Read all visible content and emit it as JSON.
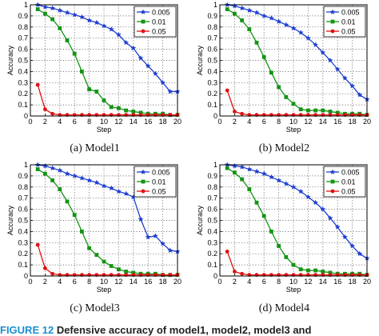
{
  "chart_data": [
    {
      "type": "line",
      "caption": "(a)  Model1",
      "xlabel": "Step",
      "ylabel": "Accuracy",
      "xlim": [
        0,
        20
      ],
      "ylim": [
        0,
        1
      ],
      "xticks": [
        0,
        2,
        4,
        6,
        8,
        10,
        12,
        14,
        16,
        18,
        20
      ],
      "yticks": [
        0,
        0.1,
        0.2,
        0.3,
        0.4,
        0.5,
        0.6,
        0.7,
        0.8,
        0.9,
        1
      ],
      "grid": true,
      "legend_position": "top-right",
      "series": [
        {
          "name": "0.005",
          "color": "#1f3fd0",
          "marker": "star",
          "x": [
            1,
            2,
            3,
            4,
            5,
            6,
            7,
            8,
            9,
            10,
            11,
            12,
            13,
            14,
            15,
            16,
            17,
            18,
            19,
            20
          ],
          "values": [
            1.0,
            0.98,
            0.97,
            0.95,
            0.93,
            0.91,
            0.89,
            0.86,
            0.84,
            0.81,
            0.78,
            0.73,
            0.66,
            0.61,
            0.52,
            0.45,
            0.38,
            0.3,
            0.22,
            0.22
          ]
        },
        {
          "name": "0.01",
          "color": "#149414",
          "marker": "square",
          "x": [
            1,
            2,
            3,
            4,
            5,
            6,
            7,
            8,
            9,
            10,
            11,
            12,
            13,
            14,
            15,
            16,
            17,
            18,
            19,
            20
          ],
          "values": [
            0.96,
            0.92,
            0.87,
            0.79,
            0.68,
            0.56,
            0.4,
            0.24,
            0.22,
            0.14,
            0.08,
            0.07,
            0.05,
            0.04,
            0.03,
            0.02,
            0.02,
            0.02,
            0.01,
            0.01
          ]
        },
        {
          "name": "0.05",
          "color": "#e01010",
          "marker": "circle",
          "x": [
            1,
            2,
            3,
            4,
            5,
            6,
            7,
            8,
            9,
            10,
            11,
            12,
            13,
            14,
            15,
            16,
            17,
            18,
            19,
            20
          ],
          "values": [
            0.28,
            0.06,
            0.02,
            0.01,
            0.01,
            0.01,
            0.01,
            0.01,
            0.01,
            0.01,
            0.01,
            0.01,
            0.01,
            0.01,
            0.01,
            0.01,
            0.01,
            0.01,
            0.01,
            0.01
          ]
        }
      ]
    },
    {
      "type": "line",
      "caption": "(b)  Model2",
      "xlabel": "Step",
      "ylabel": "Accuracy",
      "xlim": [
        0,
        20
      ],
      "ylim": [
        0,
        1
      ],
      "xticks": [
        0,
        2,
        4,
        6,
        8,
        10,
        12,
        14,
        16,
        18,
        20
      ],
      "yticks": [
        0,
        0.1,
        0.2,
        0.3,
        0.4,
        0.5,
        0.6,
        0.7,
        0.8,
        0.9,
        1
      ],
      "grid": true,
      "legend_position": "top-right",
      "series": [
        {
          "name": "0.005",
          "color": "#1f3fd0",
          "marker": "star",
          "x": [
            1,
            2,
            3,
            4,
            5,
            6,
            7,
            8,
            9,
            10,
            11,
            12,
            13,
            14,
            15,
            16,
            17,
            18,
            19,
            20
          ],
          "values": [
            1.0,
            0.99,
            0.97,
            0.95,
            0.93,
            0.9,
            0.88,
            0.85,
            0.82,
            0.79,
            0.75,
            0.7,
            0.64,
            0.57,
            0.5,
            0.42,
            0.34,
            0.27,
            0.19,
            0.15
          ]
        },
        {
          "name": "0.01",
          "color": "#149414",
          "marker": "square",
          "x": [
            1,
            2,
            3,
            4,
            5,
            6,
            7,
            8,
            9,
            10,
            11,
            12,
            13,
            14,
            15,
            16,
            17,
            18,
            19,
            20
          ],
          "values": [
            0.96,
            0.92,
            0.86,
            0.78,
            0.66,
            0.53,
            0.39,
            0.26,
            0.17,
            0.11,
            0.06,
            0.05,
            0.05,
            0.05,
            0.04,
            0.03,
            0.02,
            0.02,
            0.02,
            0.01
          ]
        },
        {
          "name": "0.05",
          "color": "#e01010",
          "marker": "circle",
          "x": [
            1,
            2,
            3,
            4,
            5,
            6,
            7,
            8,
            9,
            10,
            11,
            12,
            13,
            14,
            15,
            16,
            17,
            18,
            19,
            20
          ],
          "values": [
            0.23,
            0.04,
            0.02,
            0.01,
            0.01,
            0.01,
            0.01,
            0.01,
            0.01,
            0.01,
            0.01,
            0.01,
            0.01,
            0.01,
            0.01,
            0.01,
            0.01,
            0.01,
            0.01,
            0.01
          ]
        }
      ]
    },
    {
      "type": "line",
      "caption": "(c)  Model3",
      "xlabel": "Step",
      "ylabel": "Accuracy",
      "xlim": [
        0,
        20
      ],
      "ylim": [
        0,
        1
      ],
      "xticks": [
        0,
        2,
        4,
        6,
        8,
        10,
        12,
        14,
        16,
        18,
        20
      ],
      "yticks": [
        0,
        0.1,
        0.2,
        0.3,
        0.4,
        0.5,
        0.6,
        0.7,
        0.8,
        0.9,
        1
      ],
      "grid": true,
      "legend_position": "top-right",
      "series": [
        {
          "name": "0.005",
          "color": "#1f3fd0",
          "marker": "star",
          "x": [
            1,
            2,
            3,
            4,
            5,
            6,
            7,
            8,
            9,
            10,
            11,
            12,
            13,
            14,
            15,
            16,
            17,
            18,
            19,
            20
          ],
          "values": [
            1.0,
            0.99,
            0.97,
            0.95,
            0.92,
            0.9,
            0.88,
            0.86,
            0.84,
            0.81,
            0.79,
            0.76,
            0.74,
            0.71,
            0.51,
            0.35,
            0.36,
            0.29,
            0.23,
            0.22
          ]
        },
        {
          "name": "0.01",
          "color": "#149414",
          "marker": "square",
          "x": [
            1,
            2,
            3,
            4,
            5,
            6,
            7,
            8,
            9,
            10,
            11,
            12,
            13,
            14,
            15,
            16,
            17,
            18,
            19,
            20
          ],
          "values": [
            0.96,
            0.92,
            0.86,
            0.78,
            0.67,
            0.55,
            0.4,
            0.25,
            0.19,
            0.13,
            0.09,
            0.06,
            0.04,
            0.03,
            0.02,
            0.02,
            0.02,
            0.01,
            0.01,
            0.01
          ]
        },
        {
          "name": "0.05",
          "color": "#e01010",
          "marker": "circle",
          "x": [
            1,
            2,
            3,
            4,
            5,
            6,
            7,
            8,
            9,
            10,
            11,
            12,
            13,
            14,
            15,
            16,
            17,
            18,
            19,
            20
          ],
          "values": [
            0.28,
            0.07,
            0.02,
            0.01,
            0.01,
            0.01,
            0.01,
            0.01,
            0.01,
            0.01,
            0.01,
            0.01,
            0.01,
            0.01,
            0.01,
            0.01,
            0.01,
            0.01,
            0.01,
            0.01
          ]
        }
      ]
    },
    {
      "type": "line",
      "caption": "(d)  Model4",
      "xlabel": "Step",
      "ylabel": "Accuracy",
      "xlim": [
        0,
        20
      ],
      "ylim": [
        0,
        1
      ],
      "xticks": [
        0,
        2,
        4,
        6,
        8,
        10,
        12,
        14,
        16,
        18,
        20
      ],
      "yticks": [
        0,
        0.1,
        0.2,
        0.3,
        0.4,
        0.5,
        0.6,
        0.7,
        0.8,
        0.9,
        1
      ],
      "grid": true,
      "legend_position": "top-right",
      "series": [
        {
          "name": "0.005",
          "color": "#1f3fd0",
          "marker": "star",
          "x": [
            1,
            2,
            3,
            4,
            5,
            6,
            7,
            8,
            9,
            10,
            11,
            12,
            13,
            14,
            15,
            16,
            17,
            18,
            19,
            20
          ],
          "values": [
            1.0,
            0.99,
            0.98,
            0.96,
            0.94,
            0.92,
            0.89,
            0.86,
            0.83,
            0.8,
            0.76,
            0.71,
            0.66,
            0.6,
            0.52,
            0.44,
            0.35,
            0.27,
            0.2,
            0.16
          ]
        },
        {
          "name": "0.01",
          "color": "#149414",
          "marker": "square",
          "x": [
            1,
            2,
            3,
            4,
            5,
            6,
            7,
            8,
            9,
            10,
            11,
            12,
            13,
            14,
            15,
            16,
            17,
            18,
            19,
            20
          ],
          "values": [
            0.97,
            0.93,
            0.87,
            0.78,
            0.66,
            0.54,
            0.4,
            0.27,
            0.17,
            0.1,
            0.06,
            0.05,
            0.05,
            0.04,
            0.03,
            0.02,
            0.02,
            0.02,
            0.02,
            0.01
          ]
        },
        {
          "name": "0.05",
          "color": "#e01010",
          "marker": "circle",
          "x": [
            1,
            2,
            3,
            4,
            5,
            6,
            7,
            8,
            9,
            10,
            11,
            12,
            13,
            14,
            15,
            16,
            17,
            18,
            19,
            20
          ],
          "values": [
            0.22,
            0.04,
            0.02,
            0.01,
            0.01,
            0.01,
            0.01,
            0.01,
            0.01,
            0.01,
            0.01,
            0.01,
            0.01,
            0.01,
            0.01,
            0.01,
            0.01,
            0.01,
            0.01,
            0.01
          ]
        }
      ]
    }
  ],
  "figure_caption": {
    "label": "FIGURE 12",
    "text": "Defensive accuracy of model1, model2, model3 and"
  }
}
